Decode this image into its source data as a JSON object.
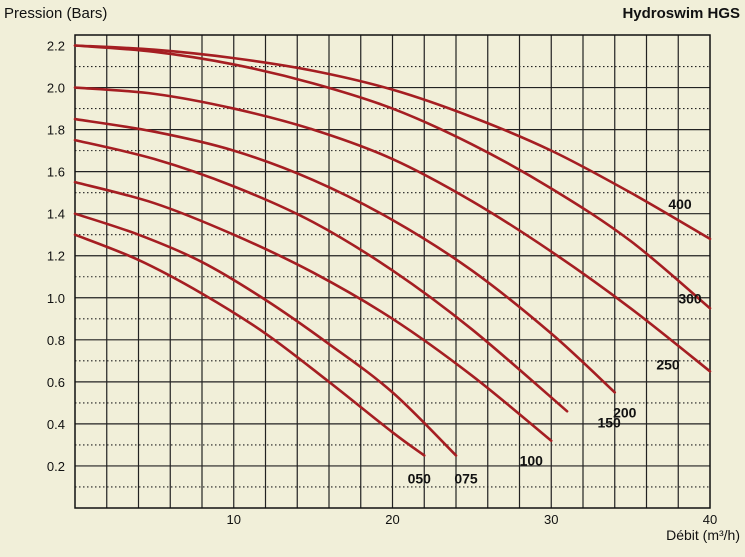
{
  "chart_data": {
    "type": "line",
    "title": "Hydroswim HGS",
    "ylabel": "Pression (Bars)",
    "xlabel": "Débit (m³/h)",
    "xlim": [
      0,
      40
    ],
    "ylim": [
      0,
      2.25
    ],
    "x_ticks": [
      "10",
      "20",
      "30",
      "40"
    ],
    "y_ticks": [
      "0.2",
      "0.4",
      "0.6",
      "0.8",
      "1.0",
      "1.2",
      "1.4",
      "1.6",
      "1.8",
      "2.0",
      "2.2"
    ],
    "grid": true,
    "curve_color": "#a51e22",
    "series": [
      {
        "name": "050",
        "x": [
          0,
          4,
          8,
          12,
          16,
          20,
          22
        ],
        "y": [
          1.3,
          1.18,
          1.02,
          0.83,
          0.6,
          0.36,
          0.25
        ]
      },
      {
        "name": "075",
        "x": [
          0,
          4,
          8,
          12,
          16,
          20,
          24
        ],
        "y": [
          1.4,
          1.3,
          1.17,
          0.99,
          0.78,
          0.55,
          0.25
        ]
      },
      {
        "name": "100",
        "x": [
          0,
          5,
          10,
          15,
          20,
          25,
          30
        ],
        "y": [
          1.55,
          1.45,
          1.3,
          1.12,
          0.9,
          0.63,
          0.32
        ]
      },
      {
        "name": "150",
        "x": [
          0,
          5,
          10,
          15,
          20,
          25,
          31
        ],
        "y": [
          1.75,
          1.66,
          1.53,
          1.36,
          1.13,
          0.85,
          0.46
        ]
      },
      {
        "name": "200",
        "x": [
          0,
          5,
          10,
          15,
          20,
          25,
          30,
          34
        ],
        "y": [
          1.85,
          1.79,
          1.7,
          1.56,
          1.37,
          1.13,
          0.83,
          0.55
        ]
      },
      {
        "name": "250",
        "x": [
          0,
          5,
          10,
          15,
          20,
          25,
          30,
          35,
          40
        ],
        "y": [
          2.0,
          1.97,
          1.9,
          1.8,
          1.66,
          1.46,
          1.22,
          0.95,
          0.65
        ]
      },
      {
        "name": "300",
        "x": [
          0,
          5,
          10,
          15,
          20,
          25,
          30,
          35,
          40
        ],
        "y": [
          2.2,
          2.17,
          2.11,
          2.02,
          1.9,
          1.73,
          1.52,
          1.27,
          0.95
        ]
      },
      {
        "name": "400",
        "x": [
          0,
          5,
          10,
          15,
          20,
          25,
          30,
          35,
          40
        ],
        "y": [
          2.2,
          2.18,
          2.14,
          2.08,
          1.99,
          1.86,
          1.7,
          1.5,
          1.28
        ]
      }
    ]
  }
}
